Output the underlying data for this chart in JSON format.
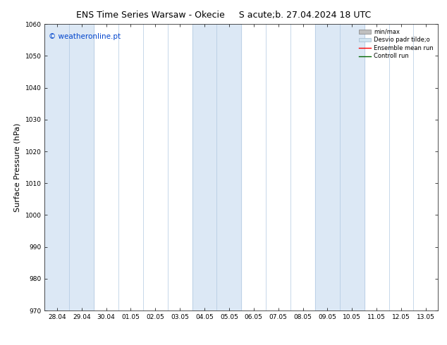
{
  "title_left": "ENS Time Series Warsaw - Okecie",
  "title_right": "S acute;b. 27.04.2024 18 UTC",
  "ylabel": "Surface Pressure (hPa)",
  "ylim": [
    970,
    1060
  ],
  "yticks": [
    970,
    980,
    990,
    1000,
    1010,
    1020,
    1030,
    1040,
    1050,
    1060
  ],
  "xtick_labels": [
    "28.04",
    "29.04",
    "30.04",
    "01.05",
    "02.05",
    "03.05",
    "04.05",
    "05.05",
    "06.05",
    "07.05",
    "08.05",
    "09.05",
    "10.05",
    "11.05",
    "12.05",
    "13.05"
  ],
  "background_color": "#ffffff",
  "plot_bg_color": "#ffffff",
  "shaded_ranges": [
    [
      0,
      2
    ],
    [
      6,
      8
    ],
    [
      11,
      13
    ]
  ],
  "shaded_color": "#dce8f5",
  "watermark_text": "© weatheronline.pt",
  "watermark_color": "#0044cc",
  "legend_entries": [
    "min/max",
    "Desvio padr tilde;o",
    "Ensemble mean run",
    "Controll run"
  ],
  "title_fontsize": 9,
  "tick_fontsize": 6.5,
  "label_fontsize": 8,
  "watermark_fontsize": 7.5
}
